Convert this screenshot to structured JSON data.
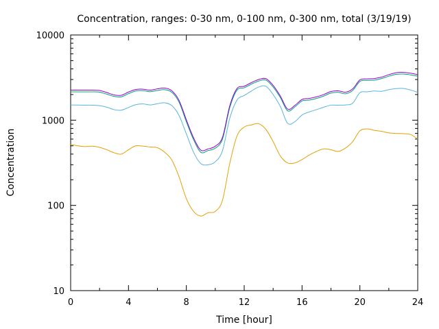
{
  "chart_data": {
    "type": "line",
    "title": "Concentration, ranges: 0-30 nm, 0-100 nm, 0-300 nm, total (3/19/19)",
    "xlabel": "Time [hour]",
    "ylabel": "Concentration",
    "xlim": [
      0,
      24
    ],
    "ylim": [
      10,
      10000
    ],
    "yscale": "log",
    "grid": false,
    "legend": "none",
    "x_ticks": [
      "0",
      "4",
      "8",
      "12",
      "16",
      "20",
      "24"
    ],
    "y_ticks": [
      "10",
      "100",
      "1000",
      "10000"
    ],
    "x": [
      0,
      0.5,
      1,
      1.5,
      2,
      2.5,
      3,
      3.5,
      4,
      4.5,
      5,
      5.5,
      6,
      6.5,
      7,
      7.5,
      8,
      8.5,
      9,
      9.5,
      10,
      10.5,
      11,
      11.5,
      12,
      12.5,
      13,
      13.5,
      14,
      14.5,
      15,
      15.5,
      16,
      16.5,
      17,
      17.5,
      18,
      18.5,
      19,
      19.5,
      20,
      20.5,
      21,
      21.5,
      22,
      22.5,
      23,
      23.5,
      24
    ],
    "series": [
      {
        "color": "#e6a000",
        "values": [
          520,
          500,
          490,
          495,
          480,
          450,
          415,
          400,
          450,
          500,
          495,
          485,
          475,
          420,
          340,
          215,
          120,
          85,
          75,
          82,
          85,
          115,
          310,
          650,
          830,
          880,
          910,
          780,
          560,
          380,
          315,
          315,
          345,
          390,
          430,
          460,
          450,
          430,
          470,
          560,
          750,
          790,
          760,
          740,
          710,
          700,
          695,
          680,
          600
        ]
      },
      {
        "color": "#5ab4e0",
        "values": [
          1510,
          1505,
          1500,
          1500,
          1480,
          1420,
          1330,
          1310,
          1410,
          1520,
          1550,
          1510,
          1560,
          1600,
          1480,
          1130,
          690,
          420,
          310,
          300,
          325,
          440,
          1050,
          1720,
          1950,
          2200,
          2450,
          2500,
          2000,
          1450,
          920,
          960,
          1150,
          1250,
          1330,
          1420,
          1500,
          1500,
          1510,
          1580,
          2100,
          2150,
          2200,
          2180,
          2280,
          2350,
          2360,
          2260,
          2120
        ]
      },
      {
        "color": "#00a07a",
        "values": [
          2150,
          2150,
          2150,
          2150,
          2130,
          2020,
          1900,
          1880,
          2050,
          2200,
          2220,
          2160,
          2230,
          2280,
          2120,
          1620,
          960,
          590,
          420,
          440,
          470,
          600,
          1400,
          2250,
          2400,
          2650,
          2880,
          2950,
          2450,
          1840,
          1290,
          1430,
          1680,
          1720,
          1800,
          1920,
          2080,
          2120,
          2040,
          2230,
          2850,
          2930,
          2950,
          3080,
          3280,
          3450,
          3480,
          3400,
          3280
        ]
      },
      {
        "color": "#9400d3",
        "values": [
          2250,
          2250,
          2250,
          2250,
          2230,
          2110,
          1980,
          1960,
          2140,
          2290,
          2310,
          2250,
          2330,
          2380,
          2210,
          1700,
          1010,
          620,
          445,
          460,
          495,
          630,
          1470,
          2350,
          2500,
          2760,
          3000,
          3070,
          2560,
          1920,
          1350,
          1490,
          1750,
          1800,
          1880,
          2000,
          2170,
          2210,
          2130,
          2330,
          2970,
          3050,
          3080,
          3200,
          3420,
          3600,
          3640,
          3560,
          3420
        ]
      }
    ]
  }
}
